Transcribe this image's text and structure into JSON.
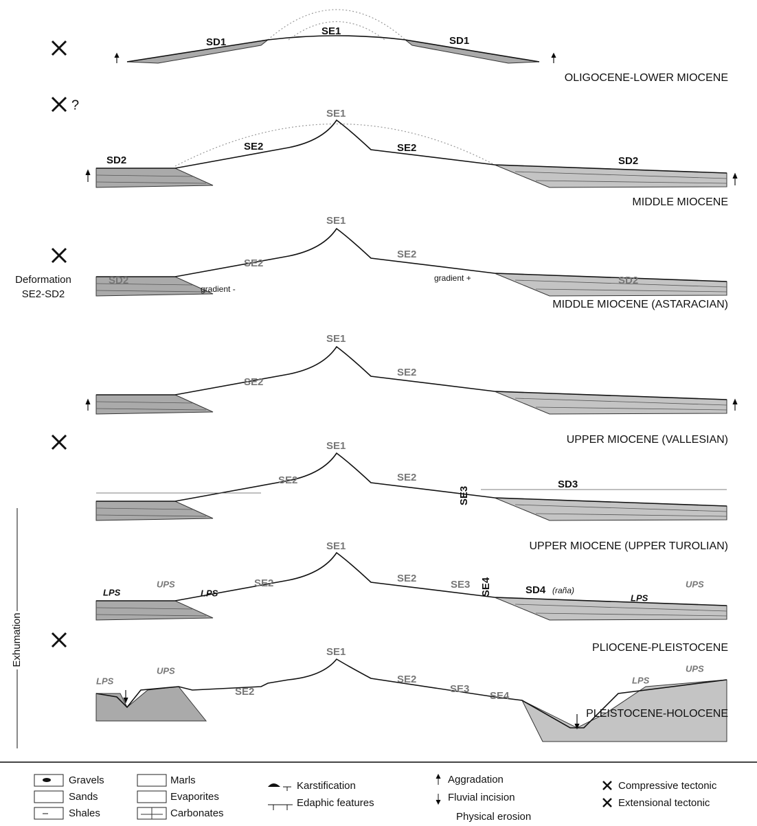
{
  "panels": [
    {
      "title": "OLIGOCENE-LOWER MIOCENE",
      "labels": [
        "SD1",
        "SE1",
        "SD1"
      ]
    },
    {
      "title": "MIDDLE MIOCENE",
      "labels": [
        "SD2",
        "SE1",
        "SE2",
        "SE2",
        "SD2"
      ]
    },
    {
      "title": "MIDDLE MIOCENE (ASTARACIAN)",
      "labels": [
        "SE1",
        "SE2",
        "SE2",
        "SD2",
        "SD2",
        "gradient -",
        "gradient +"
      ]
    },
    {
      "title": "UPPER MIOCENE (VALLESIAN)",
      "labels": [
        "SE1",
        "SE2",
        "SE2"
      ]
    },
    {
      "title": "UPPER MIOCENE (UPPER TUROLIAN)",
      "labels": [
        "SE1",
        "SE2",
        "SE2",
        "SE3",
        "SD3"
      ]
    },
    {
      "title": "PLIOCENE-PLEISTOCENE",
      "labels": [
        "SE1",
        "LPS",
        "UPS",
        "LPS",
        "SE2",
        "SE2",
        "SE3",
        "SE4",
        "SD4",
        "(raña)",
        "LPS",
        "UPS"
      ]
    },
    {
      "title": "PLEISTOCENE-HOLOCENE",
      "labels": [
        "SE1",
        "LPS",
        "UPS",
        "SE2",
        "SE2",
        "SE3",
        "SE4",
        "LPS",
        "UPS"
      ]
    }
  ],
  "side_notes": {
    "question_mark": "?",
    "deformation": [
      "Deformation",
      "SE2-SD2"
    ],
    "exhumation": "Exhumation"
  },
  "legend": {
    "lithology": [
      "Gravels",
      "Sands",
      "Shales",
      "Marls",
      "Evaporites",
      "Carbonates"
    ],
    "symbols": [
      "Karstification",
      "Edaphic features",
      "Aggradation",
      "Fluvial incision",
      "Physical erosion",
      "Compressive tectonic",
      "Extensional tectonic"
    ]
  }
}
